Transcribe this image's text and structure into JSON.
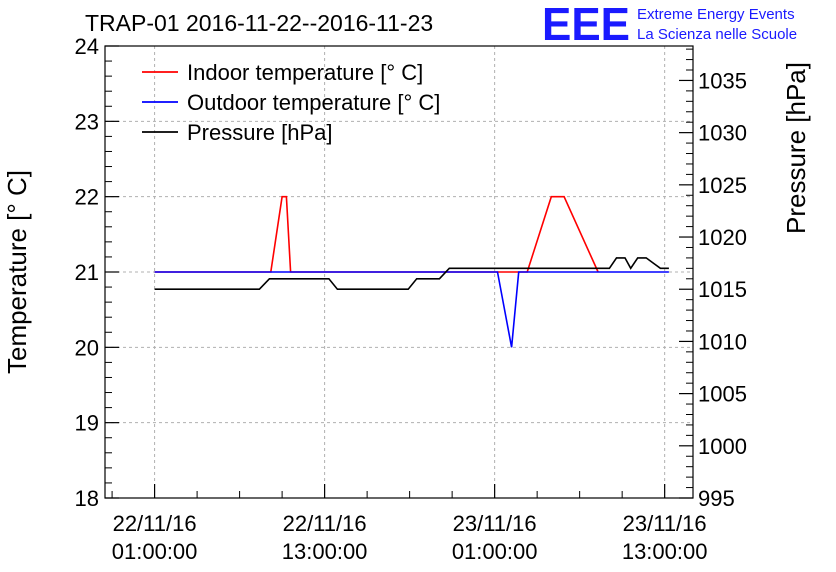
{
  "chart_data": {
    "type": "line",
    "title": "TRAP-01 2016-11-22--2016-11-23",
    "ylabel_left": "Temperature [° C]",
    "ylabel_right": "Pressure [hPa]",
    "x_ticks": [
      {
        "hours": 0,
        "line1": "22/11/16",
        "line2": "01:00:00"
      },
      {
        "hours": 12,
        "line1": "22/11/16",
        "line2": "13:00:00"
      },
      {
        "hours": 24,
        "line1": "23/11/16",
        "line2": "01:00:00"
      },
      {
        "hours": 36,
        "line1": "23/11/16",
        "line2": "13:00:00"
      }
    ],
    "xlim": [
      -3.5,
      38
    ],
    "ylim_left": [
      18,
      24
    ],
    "ylim_right": [
      995,
      1038.3
    ],
    "yticks_left": [
      18,
      19,
      20,
      21,
      22,
      23,
      24
    ],
    "yticks_right": [
      995,
      1000,
      1005,
      1010,
      1015,
      1020,
      1025,
      1030,
      1035
    ],
    "grid": true,
    "legend_position": "top-left",
    "series": [
      {
        "name": "Indoor temperature [° C]",
        "color": "#ff0000",
        "axis": "left",
        "x": [
          0,
          8.2,
          9.0,
          9.3,
          9.6,
          26.3,
          28.0,
          28.9,
          31.3
        ],
        "y": [
          21,
          21,
          22,
          22,
          21,
          21,
          22,
          22,
          21
        ]
      },
      {
        "name": "Outdoor temperature [° C]",
        "color": "#0000ff",
        "axis": "left",
        "x": [
          0,
          24.2,
          25.2,
          25.7,
          26.3,
          36.3
        ],
        "y": [
          21,
          21,
          20,
          21,
          21,
          21
        ]
      },
      {
        "name": "Pressure [hPa]",
        "color": "#000000",
        "axis": "right",
        "x": [
          0,
          7.4,
          8.1,
          12.3,
          12.9,
          17.9,
          18.5,
          20.1,
          20.8,
          32.1,
          32.6,
          33.2,
          33.6,
          34.1,
          34.7,
          35.2,
          35.7,
          36.3
        ],
        "y": [
          1015,
          1015,
          1016,
          1016,
          1015,
          1015,
          1016,
          1016,
          1017,
          1017,
          1018,
          1018,
          1017,
          1018,
          1018,
          1017.5,
          1017,
          1017
        ]
      }
    ]
  },
  "logo": {
    "mark": "EEE",
    "line1": "Extreme Energy Events",
    "line2": "La Scienza nelle Scuole"
  }
}
